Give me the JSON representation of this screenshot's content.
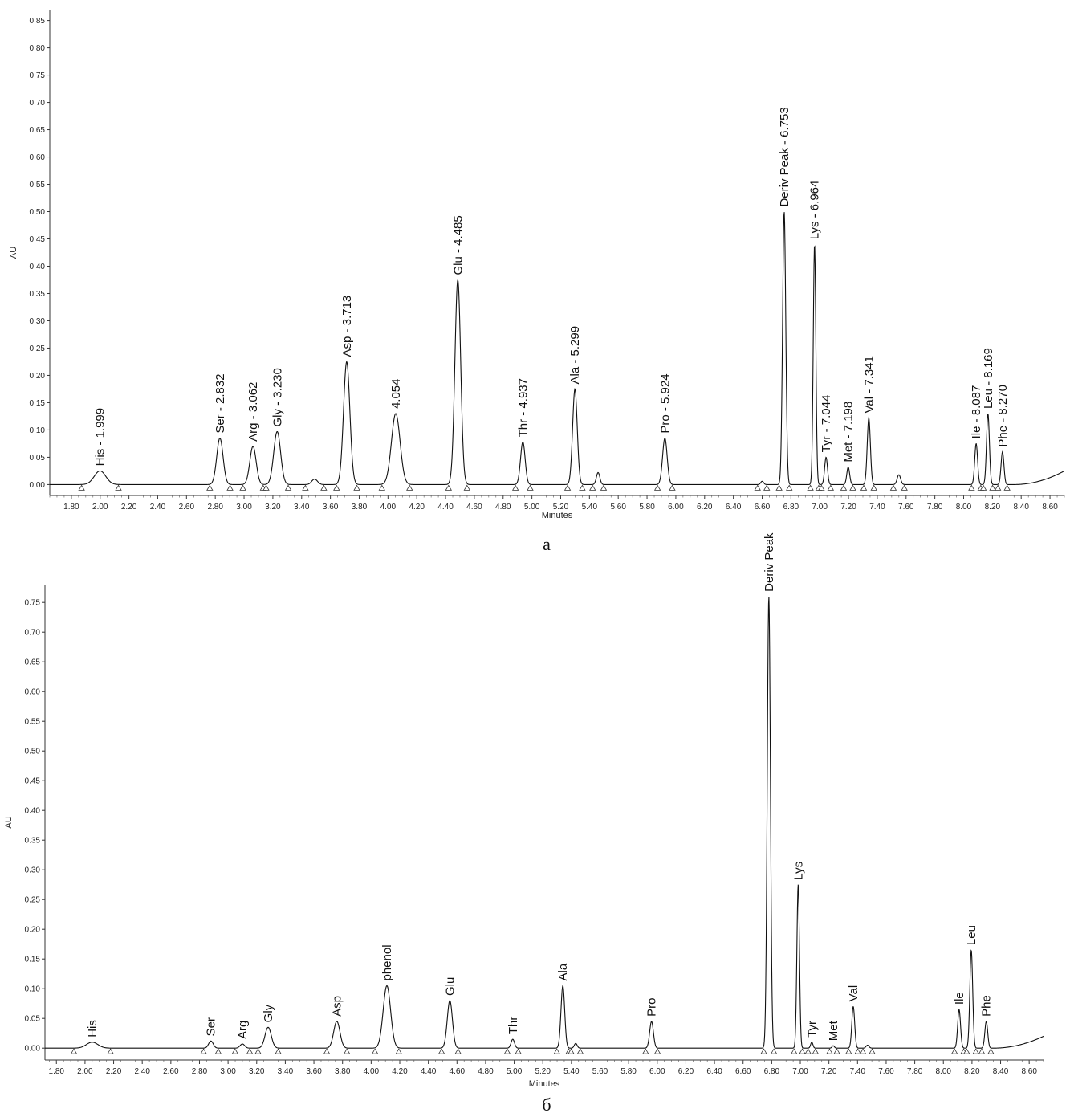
{
  "chart_data": [
    {
      "type": "line",
      "panel_label": "а",
      "xlabel": "Minutes",
      "ylabel": "AU",
      "xlim": [
        1.65,
        8.7
      ],
      "ylim": [
        -0.02,
        0.87
      ],
      "xticks": [
        "1.80",
        "2.00",
        "2.20",
        "2.40",
        "2.60",
        "2.80",
        "3.00",
        "3.20",
        "3.40",
        "3.60",
        "3.80",
        "4.00",
        "4.20",
        "4.40",
        "4.60",
        "4.80",
        "5.00",
        "5.20",
        "5.40",
        "5.60",
        "5.80",
        "6.00",
        "6.20",
        "6.40",
        "6.60",
        "6.80",
        "7.00",
        "7.20",
        "7.40",
        "7.60",
        "7.80",
        "8.00",
        "8.20",
        "8.40",
        "8.60"
      ],
      "yticks": [
        "0.00",
        "0.05",
        "0.10",
        "0.15",
        "0.20",
        "0.25",
        "0.30",
        "0.35",
        "0.40",
        "0.45",
        "0.50",
        "0.55",
        "0.60",
        "0.65",
        "0.70",
        "0.75",
        "0.80",
        "0.85"
      ],
      "peaks": [
        {
          "label": "His - 1.999",
          "rt": 1.999,
          "height": 0.025,
          "width": 0.04
        },
        {
          "label": "Ser - 2.832",
          "rt": 2.832,
          "height": 0.085,
          "width": 0.022
        },
        {
          "label": "Arg - 3.062",
          "rt": 3.062,
          "height": 0.07,
          "width": 0.022
        },
        {
          "label": "Gly - 3.230",
          "rt": 3.23,
          "height": 0.097,
          "width": 0.024
        },
        {
          "label": "",
          "rt": 3.49,
          "height": 0.01,
          "width": 0.02
        },
        {
          "label": "Asp - 3.713",
          "rt": 3.713,
          "height": 0.225,
          "width": 0.022
        },
        {
          "label": "4.054",
          "rt": 4.054,
          "height": 0.13,
          "width": 0.03
        },
        {
          "label": "Glu - 4.485",
          "rt": 4.485,
          "height": 0.375,
          "width": 0.02
        },
        {
          "label": "Thr - 4.937",
          "rt": 4.937,
          "height": 0.078,
          "width": 0.016
        },
        {
          "label": "Ala - 5.299",
          "rt": 5.299,
          "height": 0.175,
          "width": 0.016
        },
        {
          "label": "",
          "rt": 5.46,
          "height": 0.022,
          "width": 0.012
        },
        {
          "label": "Pro - 5.924",
          "rt": 5.924,
          "height": 0.085,
          "width": 0.016
        },
        {
          "label": "",
          "rt": 6.6,
          "height": 0.006,
          "width": 0.01
        },
        {
          "label": "Deriv Peak - 6.753",
          "rt": 6.753,
          "height": 0.5,
          "width": 0.011
        },
        {
          "label": "Lys - 6.964",
          "rt": 6.964,
          "height": 0.44,
          "width": 0.009
        },
        {
          "label": "Tyr - 7.044",
          "rt": 7.044,
          "height": 0.05,
          "width": 0.01
        },
        {
          "label": "Met - 7.198",
          "rt": 7.198,
          "height": 0.032,
          "width": 0.01
        },
        {
          "label": "Val - 7.341",
          "rt": 7.341,
          "height": 0.122,
          "width": 0.011
        },
        {
          "label": "",
          "rt": 7.55,
          "height": 0.018,
          "width": 0.012
        },
        {
          "label": "Ile - 8.087",
          "rt": 8.087,
          "height": 0.075,
          "width": 0.01
        },
        {
          "label": "Leu - 8.169",
          "rt": 8.169,
          "height": 0.13,
          "width": 0.01
        },
        {
          "label": "Phe - 8.270",
          "rt": 8.27,
          "height": 0.06,
          "width": 0.01
        }
      ],
      "baseline_rise": [
        0.0,
        0.025
      ]
    },
    {
      "type": "line",
      "panel_label": "б",
      "xlabel": "Minutes",
      "ylabel": "AU",
      "xlim": [
        1.72,
        8.7
      ],
      "ylim": [
        -0.02,
        0.78
      ],
      "xticks": [
        "1.80",
        "2.00",
        "2.20",
        "2.40",
        "2.60",
        "2.80",
        "3.00",
        "3.20",
        "3.40",
        "3.60",
        "3.80",
        "4.00",
        "4.20",
        "4.40",
        "4.60",
        "4.80",
        "5.00",
        "5.20",
        "5.40",
        "5.60",
        "5.80",
        "6.00",
        "6.20",
        "6.40",
        "6.60",
        "6.80",
        "7.00",
        "7.20",
        "7.40",
        "7.60",
        "7.80",
        "8.00",
        "8.20",
        "8.40",
        "8.60"
      ],
      "yticks": [
        "0.00",
        "0.05",
        "0.10",
        "0.15",
        "0.20",
        "0.25",
        "0.30",
        "0.35",
        "0.40",
        "0.45",
        "0.50",
        "0.55",
        "0.60",
        "0.65",
        "0.70",
        "0.75"
      ],
      "peaks": [
        {
          "label": "His",
          "rt": 2.05,
          "height": 0.01,
          "width": 0.04
        },
        {
          "label": "Ser",
          "rt": 2.88,
          "height": 0.012,
          "width": 0.016
        },
        {
          "label": "Arg",
          "rt": 3.1,
          "height": 0.007,
          "width": 0.016
        },
        {
          "label": "Gly",
          "rt": 3.28,
          "height": 0.035,
          "width": 0.022
        },
        {
          "label": "Asp",
          "rt": 3.76,
          "height": 0.045,
          "width": 0.022
        },
        {
          "label": "phenol",
          "rt": 4.11,
          "height": 0.105,
          "width": 0.026
        },
        {
          "label": "Glu",
          "rt": 4.55,
          "height": 0.08,
          "width": 0.018
        },
        {
          "label": "Thr",
          "rt": 4.99,
          "height": 0.015,
          "width": 0.012
        },
        {
          "label": "Ala",
          "rt": 5.34,
          "height": 0.105,
          "width": 0.013
        },
        {
          "label": "",
          "rt": 5.43,
          "height": 0.008,
          "width": 0.01
        },
        {
          "label": "Pro",
          "rt": 5.96,
          "height": 0.045,
          "width": 0.013
        },
        {
          "label": "Deriv Peak",
          "rt": 6.78,
          "height": 0.76,
          "width": 0.011
        },
        {
          "label": "Lys",
          "rt": 6.985,
          "height": 0.275,
          "width": 0.009
        },
        {
          "label": "Tyr",
          "rt": 7.08,
          "height": 0.01,
          "width": 0.008
        },
        {
          "label": "Met",
          "rt": 7.23,
          "height": 0.004,
          "width": 0.008
        },
        {
          "label": "Val",
          "rt": 7.37,
          "height": 0.07,
          "width": 0.01
        },
        {
          "label": "",
          "rt": 7.47,
          "height": 0.005,
          "width": 0.01
        },
        {
          "label": "Ile",
          "rt": 8.11,
          "height": 0.065,
          "width": 0.01
        },
        {
          "label": "Leu",
          "rt": 8.195,
          "height": 0.165,
          "width": 0.01
        },
        {
          "label": "Phe",
          "rt": 8.3,
          "height": 0.045,
          "width": 0.01
        }
      ],
      "baseline_rise": [
        0.0,
        0.02
      ]
    }
  ]
}
